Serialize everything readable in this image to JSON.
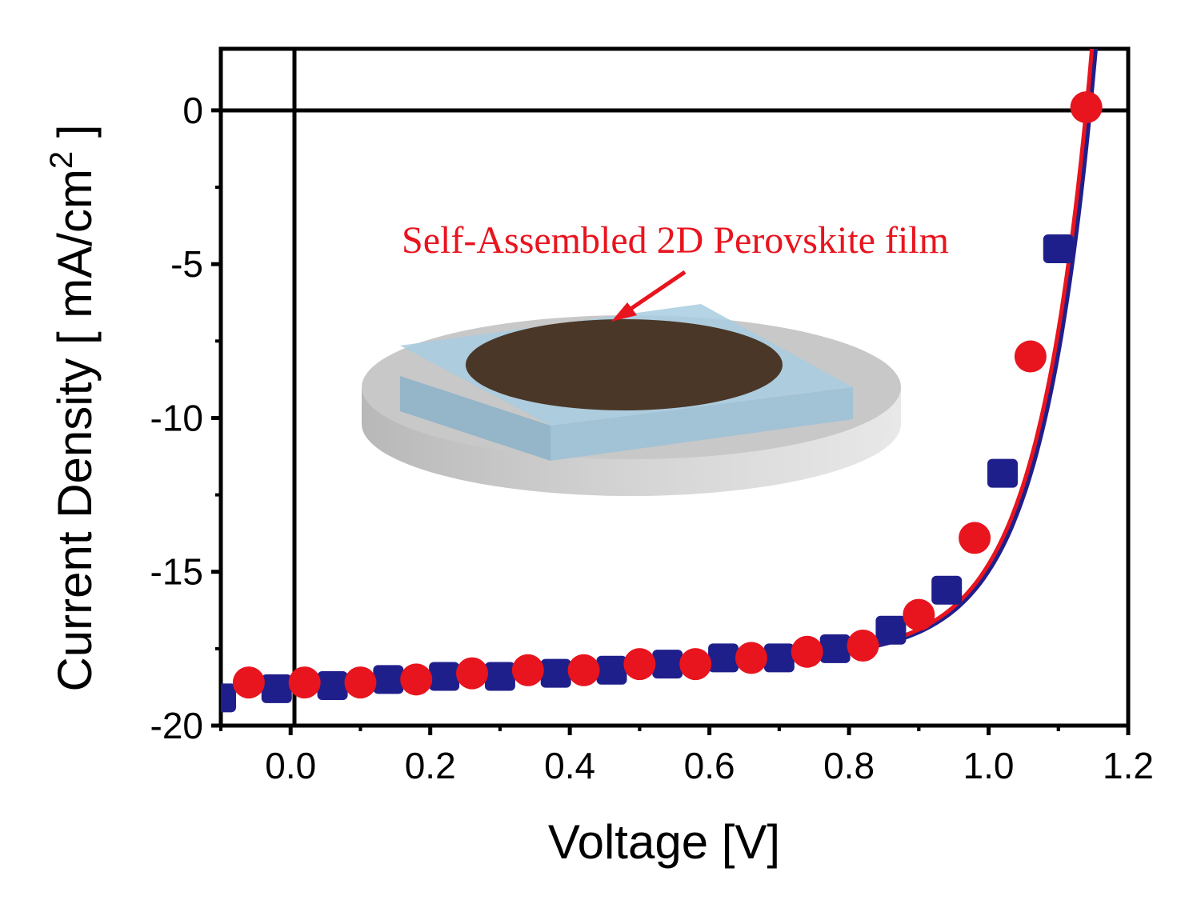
{
  "chart_data": {
    "type": "line",
    "xlabel": "Voltage [V]",
    "ylabel": "Current Density [ mA/cm",
    "ylabel_superscript": "2",
    "ylabel_close": " ]",
    "xlim": [
      -0.1,
      1.2
    ],
    "ylim": [
      -20,
      2
    ],
    "x_ticks": [
      "0.0",
      "0.2",
      "0.4",
      "0.6",
      "0.8",
      "1.0",
      "1.2"
    ],
    "x_tick_values": [
      0.0,
      0.2,
      0.4,
      0.6,
      0.8,
      1.0,
      1.2
    ],
    "y_ticks": [
      "0",
      "-5",
      "-10",
      "-15",
      "-20"
    ],
    "y_tick_values": [
      0,
      -5,
      -10,
      -15,
      -20
    ],
    "grid": false,
    "zero_lines": true,
    "annotation": "Self-Assembled 2D Perovskite film",
    "series": [
      {
        "marker": "square",
        "color": "#1f1f8c",
        "x": [
          -0.1,
          -0.02,
          0.06,
          0.14,
          0.22,
          0.3,
          0.38,
          0.46,
          0.54,
          0.62,
          0.7,
          0.78,
          0.86,
          0.94,
          1.02,
          1.1
        ],
        "y": [
          -19.1,
          -18.8,
          -18.7,
          -18.5,
          -18.4,
          -18.4,
          -18.3,
          -18.2,
          -18.0,
          -17.8,
          -17.8,
          -17.5,
          -16.9,
          -15.6,
          -11.8,
          -4.5
        ]
      },
      {
        "marker": "circle",
        "color": "#e8141e",
        "x": [
          -0.06,
          0.02,
          0.1,
          0.18,
          0.26,
          0.34,
          0.42,
          0.5,
          0.58,
          0.66,
          0.74,
          0.82,
          0.9,
          0.98,
          1.06,
          1.14
        ],
        "y": [
          -18.6,
          -18.6,
          -18.6,
          -18.5,
          -18.3,
          -18.2,
          -18.2,
          -18.0,
          -18.0,
          -17.8,
          -17.6,
          -17.4,
          -16.4,
          -13.9,
          -8.0,
          0.1
        ]
      }
    ]
  }
}
